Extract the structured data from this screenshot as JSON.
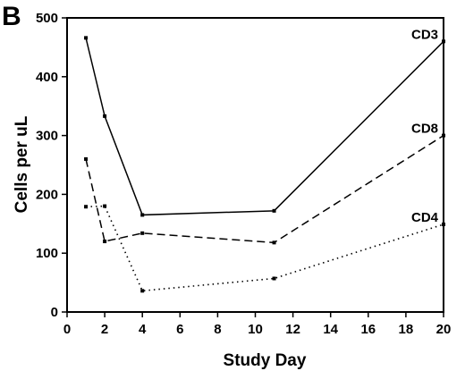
{
  "chart_data": {
    "type": "line",
    "panel_label": "B",
    "xlabel": "Study Day",
    "ylabel": "Cells per uL",
    "xlim": [
      0,
      20
    ],
    "ylim": [
      0,
      500
    ],
    "xticks": [
      0,
      2,
      4,
      6,
      8,
      10,
      12,
      14,
      16,
      18,
      20
    ],
    "yticks": [
      0,
      100,
      200,
      300,
      400,
      500
    ],
    "grid": false,
    "legend": "inline labels at line ends",
    "series": [
      {
        "name": "CD3",
        "style": "solid",
        "points": [
          {
            "x": 1,
            "y": 466
          },
          {
            "x": 2,
            "y": 333
          },
          {
            "x": 4,
            "y": 165
          },
          {
            "x": 11,
            "y": 172
          },
          {
            "x": 20,
            "y": 460
          }
        ]
      },
      {
        "name": "CD8",
        "style": "dashed",
        "points": [
          {
            "x": 1,
            "y": 260
          },
          {
            "x": 2,
            "y": 120
          },
          {
            "x": 4,
            "y": 134
          },
          {
            "x": 11,
            "y": 118
          },
          {
            "x": 20,
            "y": 300
          }
        ]
      },
      {
        "name": "CD4",
        "style": "dotted",
        "points": [
          {
            "x": 1,
            "y": 179
          },
          {
            "x": 2,
            "y": 180
          },
          {
            "x": 4,
            "y": 36
          },
          {
            "x": 11,
            "y": 57
          },
          {
            "x": 20,
            "y": 149
          }
        ]
      }
    ]
  }
}
